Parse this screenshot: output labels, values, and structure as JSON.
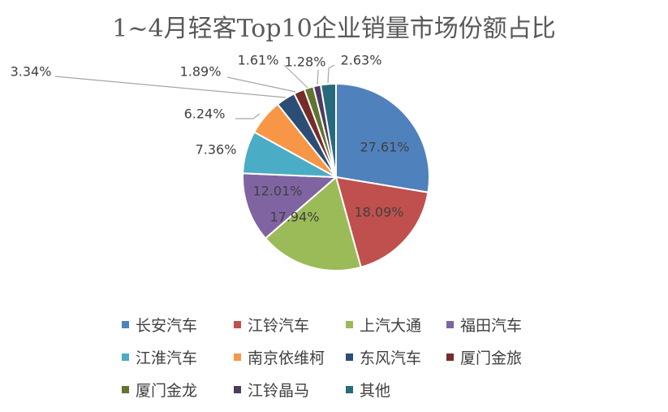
{
  "chart_data": {
    "type": "pie",
    "title": "1~4月轻客Top10企业销量市场份额占比",
    "categories": [
      "长安汽车",
      "江铃汽车",
      "上汽大通",
      "福田汽车",
      "江淮汽车",
      "南京依维柯",
      "东风汽车",
      "厦门金旅",
      "厦门金龙",
      "江铃晶马",
      "其他"
    ],
    "values": [
      27.61,
      18.09,
      17.94,
      12.01,
      7.36,
      6.24,
      3.34,
      1.89,
      1.61,
      1.28,
      2.63
    ],
    "labels": [
      "27.61%",
      "18.09%",
      "17.94%",
      "12.01%",
      "7.36%",
      "6.24%",
      "3.34%",
      "1.89%",
      "1.61%",
      "1.28%",
      "2.63%"
    ],
    "colors": [
      "#4f81bd",
      "#c0504d",
      "#9bbb59",
      "#8064a2",
      "#4bacc6",
      "#f79646",
      "#2c4d75",
      "#772c2a",
      "#5f7530",
      "#4d3b62",
      "#276a7c"
    ],
    "legend_position": "bottom"
  }
}
